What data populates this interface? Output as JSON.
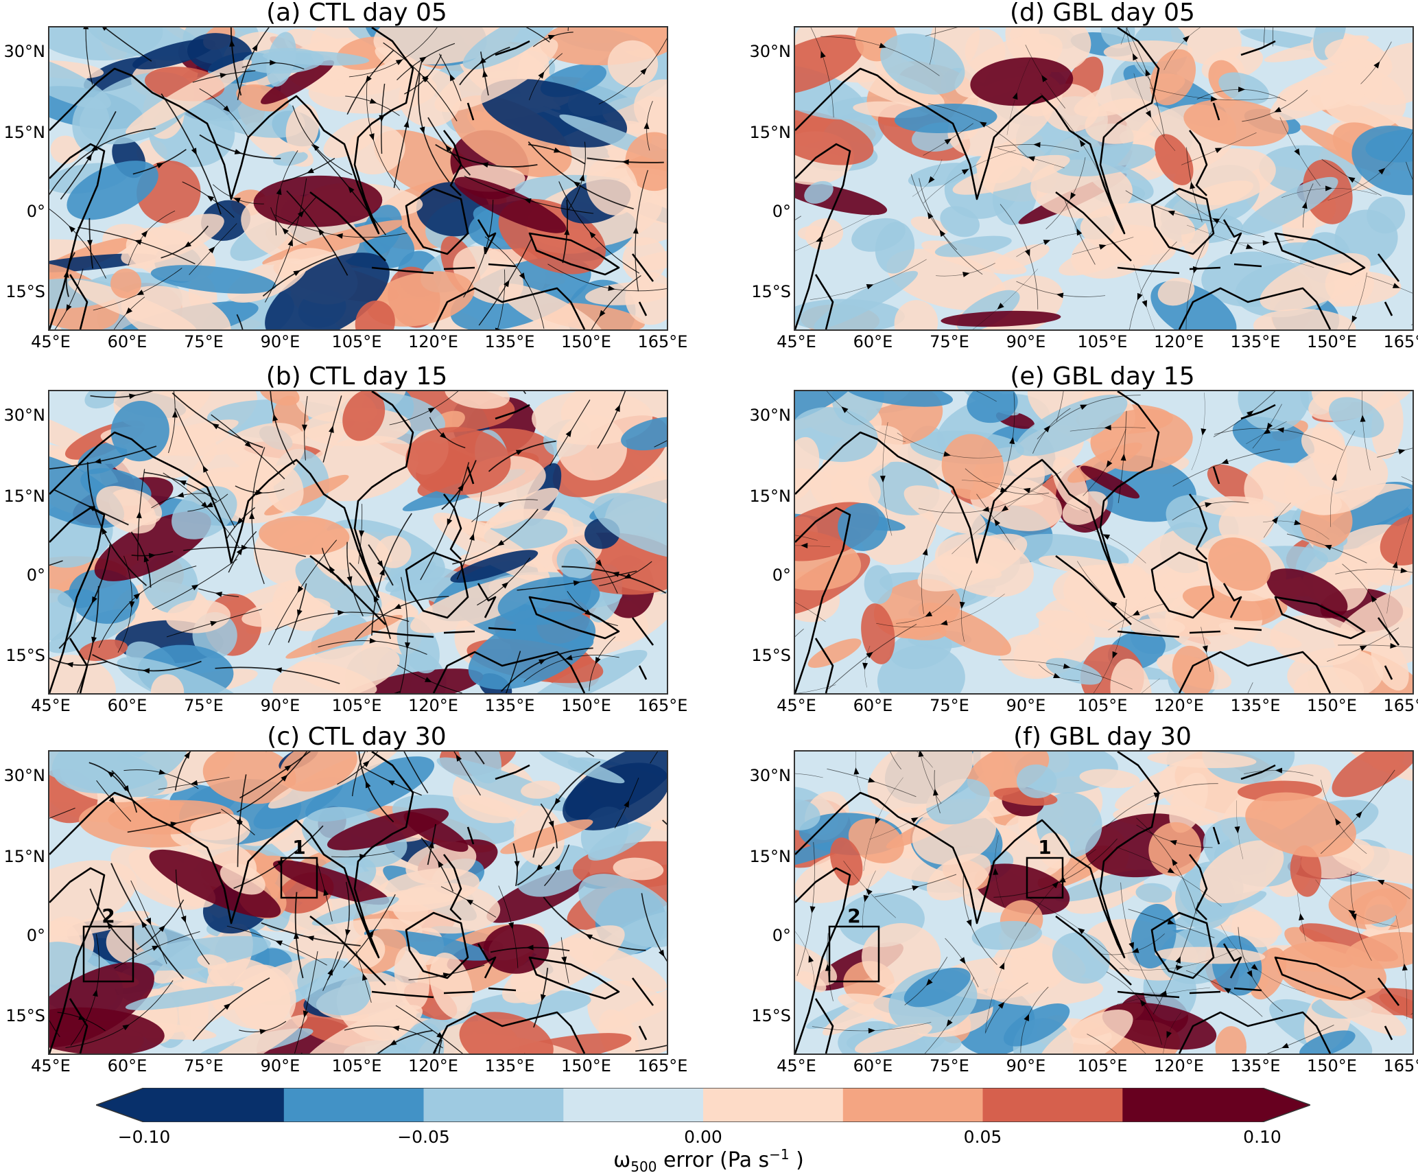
{
  "panels": [
    {
      "id": "a",
      "title": "(a) CTL day 05",
      "run": "CTL",
      "day": "05",
      "boxes": []
    },
    {
      "id": "b",
      "title": "(b) CTL day 15",
      "run": "CTL",
      "day": "15",
      "boxes": []
    },
    {
      "id": "c",
      "title": "(c) CTL day 30",
      "run": "CTL",
      "day": "30",
      "boxes": [
        "1",
        "2"
      ]
    },
    {
      "id": "d",
      "title": "(d) GBL day 05",
      "run": "GBL",
      "day": "05",
      "boxes": []
    },
    {
      "id": "e",
      "title": "(e) GBL day 15",
      "run": "GBL",
      "day": "15",
      "boxes": []
    },
    {
      "id": "f",
      "title": "(f) GBL day 30",
      "run": "GBL",
      "day": "30",
      "boxes": [
        "1",
        "2"
      ]
    }
  ],
  "axes": {
    "lat_ticks": [
      "30°N",
      "15°N",
      "0°",
      "15°S"
    ],
    "lon_ticks": [
      "45°E",
      "60°E",
      "75°E",
      "90°E",
      "105°E",
      "120°E",
      "135°E",
      "150°E",
      "165°E"
    ]
  },
  "colorbar": {
    "colors": [
      "#08306b",
      "#4292c6",
      "#9ecae1",
      "#d1e5f0",
      "#fddbc7",
      "#f4a582",
      "#d6604d",
      "#67001f"
    ],
    "tick_labels": [
      "−0.10",
      "−0.05",
      "0.00",
      "0.05",
      "0.10"
    ],
    "label": "ω",
    "label_sub": "500",
    "label_rest": " error (Pa s",
    "label_sup": "−1",
    "label_end": " )",
    "range": [
      -0.1,
      0.1
    ],
    "extend": "both"
  }
}
